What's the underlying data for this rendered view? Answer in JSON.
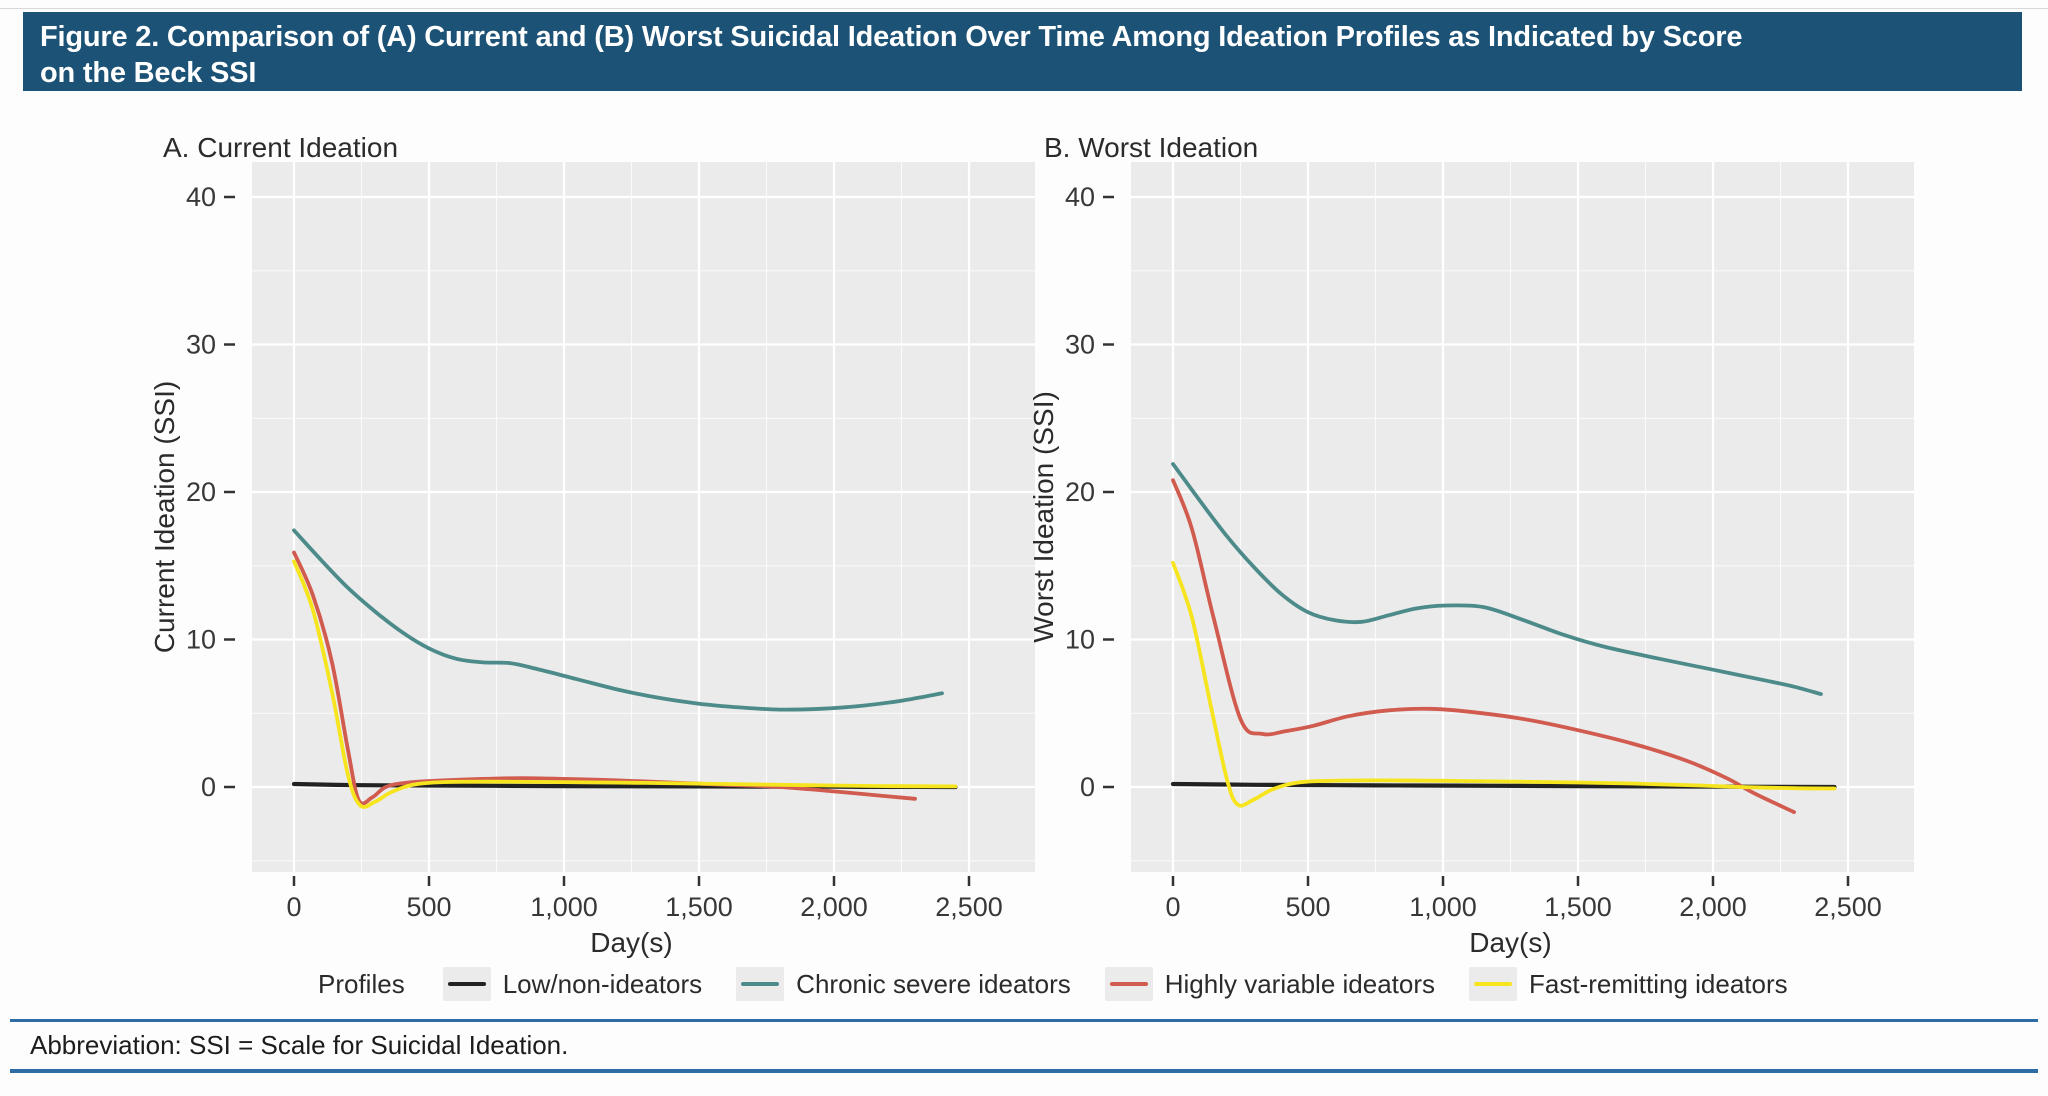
{
  "header": {
    "title_line1": "Figure 2. Comparison of (A) Current and (B) Worst Suicidal Ideation Over Time Among Ideation Profiles as Indicated by Score",
    "title_line2": "on the Beck SSI"
  },
  "colors": {
    "header_bg": "#1b5276",
    "rule_blue": "#2e6da4",
    "plot_bg": "#ebebeb",
    "grid": "#ffffff",
    "tick_text": "#383838",
    "axis_text": "#2b2b2b",
    "black": "#222222",
    "teal": "#4d8b8b",
    "red": "#d05b4e",
    "yellow": "#f6e51e"
  },
  "legend": {
    "title": "Profiles",
    "items": [
      {
        "label": "Low/non-ideators",
        "color_key": "black"
      },
      {
        "label": "Chronic severe ideators",
        "color_key": "teal"
      },
      {
        "label": "Highly variable ideators",
        "color_key": "red"
      },
      {
        "label": "Fast-remitting ideators",
        "color_key": "yellow"
      }
    ]
  },
  "footer": {
    "text": "Abbreviation: SSI = Scale for Suicidal Ideation."
  },
  "chart_data": [
    {
      "type": "line",
      "panel_label": "A. Current Ideation",
      "xlabel": "Day(s)",
      "ylabel": "Current Ideation (SSI)",
      "x_ticks": [
        0,
        500,
        1000,
        1500,
        2000,
        2500
      ],
      "x_tick_labels": [
        "0",
        "500",
        "1,000",
        "1,500",
        "2,000",
        "2,500"
      ],
      "y_ticks": [
        0,
        10,
        20,
        30,
        40
      ],
      "y_tick_labels": [
        "0",
        "10",
        "20",
        "30",
        "40"
      ],
      "xlim": [
        -155,
        2745
      ],
      "ylim": [
        -5.8,
        42.4
      ],
      "grid": "on",
      "legend_position": "bottom",
      "series": [
        {
          "name": "Low/non-ideators",
          "color_key": "black",
          "points": [
            [
              0,
              0.2
            ],
            [
              250,
              0.12
            ],
            [
              500,
              0.1
            ],
            [
              750,
              0.08
            ],
            [
              1000,
              0.06
            ],
            [
              1250,
              0.05
            ],
            [
              1500,
              0.04
            ],
            [
              1750,
              0.03
            ],
            [
              2000,
              0.02
            ],
            [
              2200,
              0.01
            ],
            [
              2450,
              0.0
            ]
          ]
        },
        {
          "name": "Chronic severe ideators",
          "color_key": "teal",
          "points": [
            [
              0,
              17.4
            ],
            [
              100,
              15.4
            ],
            [
              200,
              13.5
            ],
            [
              300,
              11.9
            ],
            [
              400,
              10.5
            ],
            [
              500,
              9.4
            ],
            [
              600,
              8.7
            ],
            [
              700,
              8.45
            ],
            [
              800,
              8.4
            ],
            [
              900,
              8.0
            ],
            [
              1050,
              7.3
            ],
            [
              1200,
              6.6
            ],
            [
              1350,
              6.05
            ],
            [
              1500,
              5.65
            ],
            [
              1650,
              5.4
            ],
            [
              1800,
              5.25
            ],
            [
              1950,
              5.3
            ],
            [
              2100,
              5.5
            ],
            [
              2250,
              5.85
            ],
            [
              2400,
              6.35
            ]
          ]
        },
        {
          "name": "Highly variable ideators",
          "color_key": "red",
          "points": [
            [
              0,
              15.9
            ],
            [
              70,
              13.0
            ],
            [
              140,
              8.5
            ],
            [
              200,
              2.5
            ],
            [
              240,
              -0.9
            ],
            [
              290,
              -0.7
            ],
            [
              340,
              0.0
            ],
            [
              420,
              0.3
            ],
            [
              550,
              0.45
            ],
            [
              700,
              0.55
            ],
            [
              850,
              0.6
            ],
            [
              1000,
              0.55
            ],
            [
              1200,
              0.45
            ],
            [
              1400,
              0.3
            ],
            [
              1600,
              0.15
            ],
            [
              1800,
              0.0
            ],
            [
              2000,
              -0.3
            ],
            [
              2150,
              -0.55
            ],
            [
              2300,
              -0.8
            ]
          ]
        },
        {
          "name": "Fast-remitting ideators",
          "color_key": "yellow",
          "points": [
            [
              0,
              15.3
            ],
            [
              70,
              12.0
            ],
            [
              140,
              6.5
            ],
            [
              200,
              0.8
            ],
            [
              245,
              -1.25
            ],
            [
              300,
              -1.0
            ],
            [
              360,
              -0.35
            ],
            [
              440,
              0.15
            ],
            [
              550,
              0.33
            ],
            [
              750,
              0.36
            ],
            [
              1000,
              0.33
            ],
            [
              1300,
              0.28
            ],
            [
              1600,
              0.2
            ],
            [
              1900,
              0.12
            ],
            [
              2150,
              0.07
            ],
            [
              2450,
              0.04
            ]
          ]
        }
      ]
    },
    {
      "type": "line",
      "panel_label": "B. Worst Ideation",
      "xlabel": "Day(s)",
      "ylabel": "Worst Ideation (SSI)",
      "x_ticks": [
        0,
        500,
        1000,
        1500,
        2000,
        2500
      ],
      "x_tick_labels": [
        "0",
        "500",
        "1,000",
        "1,500",
        "2,000",
        "2,500"
      ],
      "y_ticks": [
        0,
        10,
        20,
        30,
        40
      ],
      "y_tick_labels": [
        "0",
        "10",
        "20",
        "30",
        "40"
      ],
      "xlim": [
        -155,
        2745
      ],
      "ylim": [
        -5.8,
        42.4
      ],
      "grid": "on",
      "legend_position": "bottom",
      "series": [
        {
          "name": "Low/non-ideators",
          "color_key": "black",
          "points": [
            [
              0,
              0.2
            ],
            [
              300,
              0.15
            ],
            [
              600,
              0.12
            ],
            [
              900,
              0.1
            ],
            [
              1200,
              0.08
            ],
            [
              1500,
              0.06
            ],
            [
              1800,
              0.04
            ],
            [
              2100,
              0.02
            ],
            [
              2450,
              0.0
            ]
          ]
        },
        {
          "name": "Chronic severe ideators",
          "color_key": "teal",
          "points": [
            [
              0,
              21.9
            ],
            [
              100,
              19.4
            ],
            [
              200,
              17.0
            ],
            [
              300,
              14.9
            ],
            [
              400,
              13.1
            ],
            [
              500,
              11.85
            ],
            [
              600,
              11.3
            ],
            [
              700,
              11.2
            ],
            [
              800,
              11.65
            ],
            [
              900,
              12.1
            ],
            [
              1000,
              12.3
            ],
            [
              1150,
              12.2
            ],
            [
              1300,
              11.3
            ],
            [
              1450,
              10.3
            ],
            [
              1600,
              9.5
            ],
            [
              1800,
              8.7
            ],
            [
              2000,
              7.95
            ],
            [
              2200,
              7.2
            ],
            [
              2300,
              6.8
            ],
            [
              2400,
              6.3
            ]
          ]
        },
        {
          "name": "Highly variable ideators",
          "color_key": "red",
          "points": [
            [
              0,
              20.8
            ],
            [
              70,
              17.5
            ],
            [
              150,
              11.5
            ],
            [
              250,
              4.6
            ],
            [
              330,
              3.6
            ],
            [
              420,
              3.8
            ],
            [
              520,
              4.15
            ],
            [
              650,
              4.8
            ],
            [
              800,
              5.2
            ],
            [
              950,
              5.3
            ],
            [
              1100,
              5.1
            ],
            [
              1300,
              4.6
            ],
            [
              1500,
              3.85
            ],
            [
              1700,
              2.95
            ],
            [
              1900,
              1.8
            ],
            [
              2050,
              0.6
            ],
            [
              2150,
              -0.4
            ],
            [
              2300,
              -1.7
            ]
          ]
        },
        {
          "name": "Fast-remitting ideators",
          "color_key": "yellow",
          "points": [
            [
              0,
              15.2
            ],
            [
              70,
              11.5
            ],
            [
              140,
              5.5
            ],
            [
              200,
              0.5
            ],
            [
              240,
              -1.2
            ],
            [
              300,
              -0.85
            ],
            [
              370,
              -0.15
            ],
            [
              460,
              0.3
            ],
            [
              580,
              0.42
            ],
            [
              800,
              0.45
            ],
            [
              1100,
              0.4
            ],
            [
              1400,
              0.33
            ],
            [
              1700,
              0.24
            ],
            [
              1950,
              0.1
            ],
            [
              2100,
              0.0
            ],
            [
              2300,
              -0.08
            ],
            [
              2450,
              -0.1
            ]
          ]
        }
      ]
    }
  ]
}
